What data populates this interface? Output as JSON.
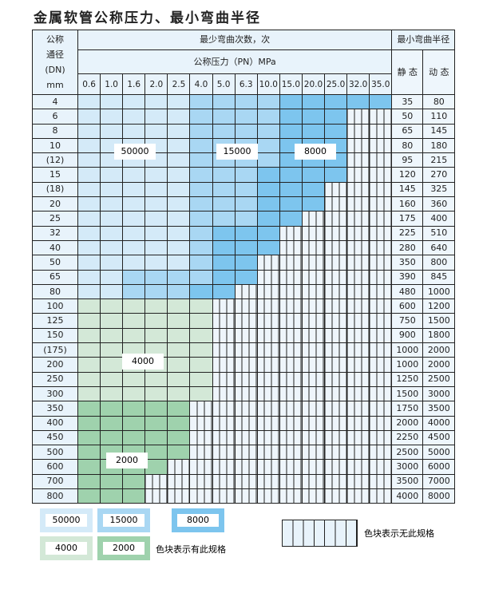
{
  "title": "金属软管公称压力、最小弯曲半径",
  "header": {
    "dn": [
      "公称",
      "通径",
      "(DN)",
      "mm"
    ],
    "cycles": "最少弯曲次数，次",
    "pressure": "公称压力（PN）MPa",
    "radius": "最小弯曲半径",
    "static": "静 态",
    "dynamic": "动 态",
    "pressures": [
      "0.6",
      "1.0",
      "1.6",
      "2.0",
      "2.5",
      "4.0",
      "5.0",
      "6.3",
      "10.0",
      "15.0",
      "20.0",
      "25.0",
      "32.0",
      "35.0"
    ]
  },
  "colors": {
    "L": "#d4eaf8",
    "M": "#a9d7f3",
    "D": "#7dc5ee",
    "G": "#d3e8d7",
    "H": "#9fd2ad"
  },
  "region_labels": {
    "L": "50000",
    "M": "15000",
    "D": "8000",
    "G": "4000",
    "H": "2000"
  },
  "rows": [
    {
      "dn": "4",
      "fill": "LLLLLMMMMDDDDD",
      "static": "35",
      "dynamic": "80"
    },
    {
      "dn": "6",
      "fill": "LLLLLMMMMDDDXX",
      "static": "50",
      "dynamic": "110"
    },
    {
      "dn": "8",
      "fill": "LLLLLMMMMDDDXX",
      "static": "65",
      "dynamic": "145"
    },
    {
      "dn": "10",
      "fill": "LLLLLMMMMDDDXX",
      "static": "80",
      "dynamic": "180"
    },
    {
      "dn": "(12)",
      "fill": "LLLLLMMMMDDDXX",
      "static": "95",
      "dynamic": "215"
    },
    {
      "dn": "15",
      "fill": "LLLLLMMMDDDDXX",
      "static": "120",
      "dynamic": "270"
    },
    {
      "dn": "(18)",
      "fill": "LLLLLMMMDDDXXX",
      "static": "145",
      "dynamic": "325"
    },
    {
      "dn": "20",
      "fill": "LLLLLMMMDDDXXX",
      "static": "160",
      "dynamic": "360"
    },
    {
      "dn": "25",
      "fill": "LLLLLMMMDDXXXX",
      "static": "175",
      "dynamic": "400"
    },
    {
      "dn": "32",
      "fill": "LLLLLMDDDXXXXX",
      "static": "225",
      "dynamic": "510"
    },
    {
      "dn": "40",
      "fill": "LLLLLMDDDXXXXX",
      "static": "280",
      "dynamic": "640"
    },
    {
      "dn": "50",
      "fill": "LLLLLMDDXXXXXX",
      "static": "350",
      "dynamic": "800"
    },
    {
      "dn": "65",
      "fill": "LLMMMMDDXXXXXX",
      "static": "390",
      "dynamic": "845"
    },
    {
      "dn": "80",
      "fill": "LLMMMDDXXXXXXX",
      "static": "480",
      "dynamic": "1000"
    },
    {
      "dn": "100",
      "fill": "GGGGGGXXXXXXXX",
      "static": "600",
      "dynamic": "1200"
    },
    {
      "dn": "125",
      "fill": "GGGGGGXXXXXXXX",
      "static": "750",
      "dynamic": "1500"
    },
    {
      "dn": "150",
      "fill": "GGGGGGXXXXXXXX",
      "static": "900",
      "dynamic": "1800"
    },
    {
      "dn": "(175)",
      "fill": "GGGGGGXXXXXXXX",
      "static": "1000",
      "dynamic": "2000"
    },
    {
      "dn": "200",
      "fill": "GGGGGGXXXXXXXX",
      "static": "1000",
      "dynamic": "2000"
    },
    {
      "dn": "250",
      "fill": "GGGGGGXXXXXXXX",
      "static": "1250",
      "dynamic": "2500"
    },
    {
      "dn": "300",
      "fill": "GGGGGGXXXXXXXX",
      "static": "1500",
      "dynamic": "3000"
    },
    {
      "dn": "350",
      "fill": "HHHHHXXXXXXXXX",
      "static": "1750",
      "dynamic": "3500"
    },
    {
      "dn": "400",
      "fill": "HHHHHXXXXXXXXX",
      "static": "2000",
      "dynamic": "4000"
    },
    {
      "dn": "450",
      "fill": "HHHHHXXXXXXXXX",
      "static": "2250",
      "dynamic": "4500"
    },
    {
      "dn": "500",
      "fill": "HHHHHXXXXXXXXX",
      "static": "2500",
      "dynamic": "5000"
    },
    {
      "dn": "600",
      "fill": "HHHHXXXXXXXXXX",
      "static": "3000",
      "dynamic": "6000"
    },
    {
      "dn": "700",
      "fill": "HHHXXXXXXXXXXX",
      "static": "3500",
      "dynamic": "7000"
    },
    {
      "dn": "800",
      "fill": "HHHXXXXXXXXXXX",
      "static": "4000",
      "dynamic": "8000"
    }
  ],
  "legend": {
    "has_spec": "色块表示有此规格",
    "no_spec": "色块表示无此规格"
  }
}
